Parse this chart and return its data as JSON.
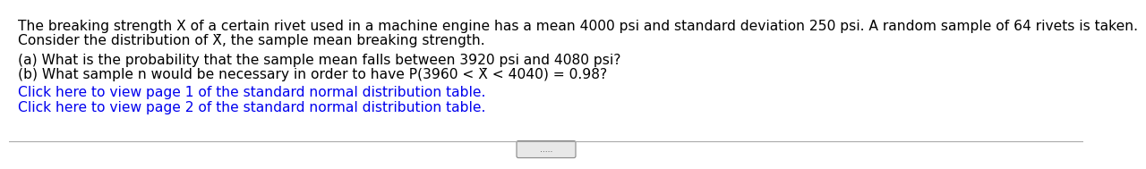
{
  "line1": "The breaking strength X of a certain rivet used in a machine engine has a mean 4000 psi and standard deviation 250 psi. A random sample of 64 rivets is taken.",
  "line2_full": "Consider the distribution of X̄, the sample mean breaking strength.",
  "line_a": "(a) What is the probability that the sample mean falls between 3920 psi and 4080 psi?",
  "line_b_full": "(b) What sample n would be necessary in order to have P(3960 < X̄ < 4040) = 0.98?",
  "link1": "Click here to view page 1 of the standard normal distribution table.",
  "link2": "Click here to view page 2 of the standard normal distribution table.",
  "text_color": "#000000",
  "link_color": "#0000EE",
  "bg_color": "#FFFFFF",
  "font_size": 11.2,
  "separator_color": "#AAAAAA",
  "dots_text": "....."
}
